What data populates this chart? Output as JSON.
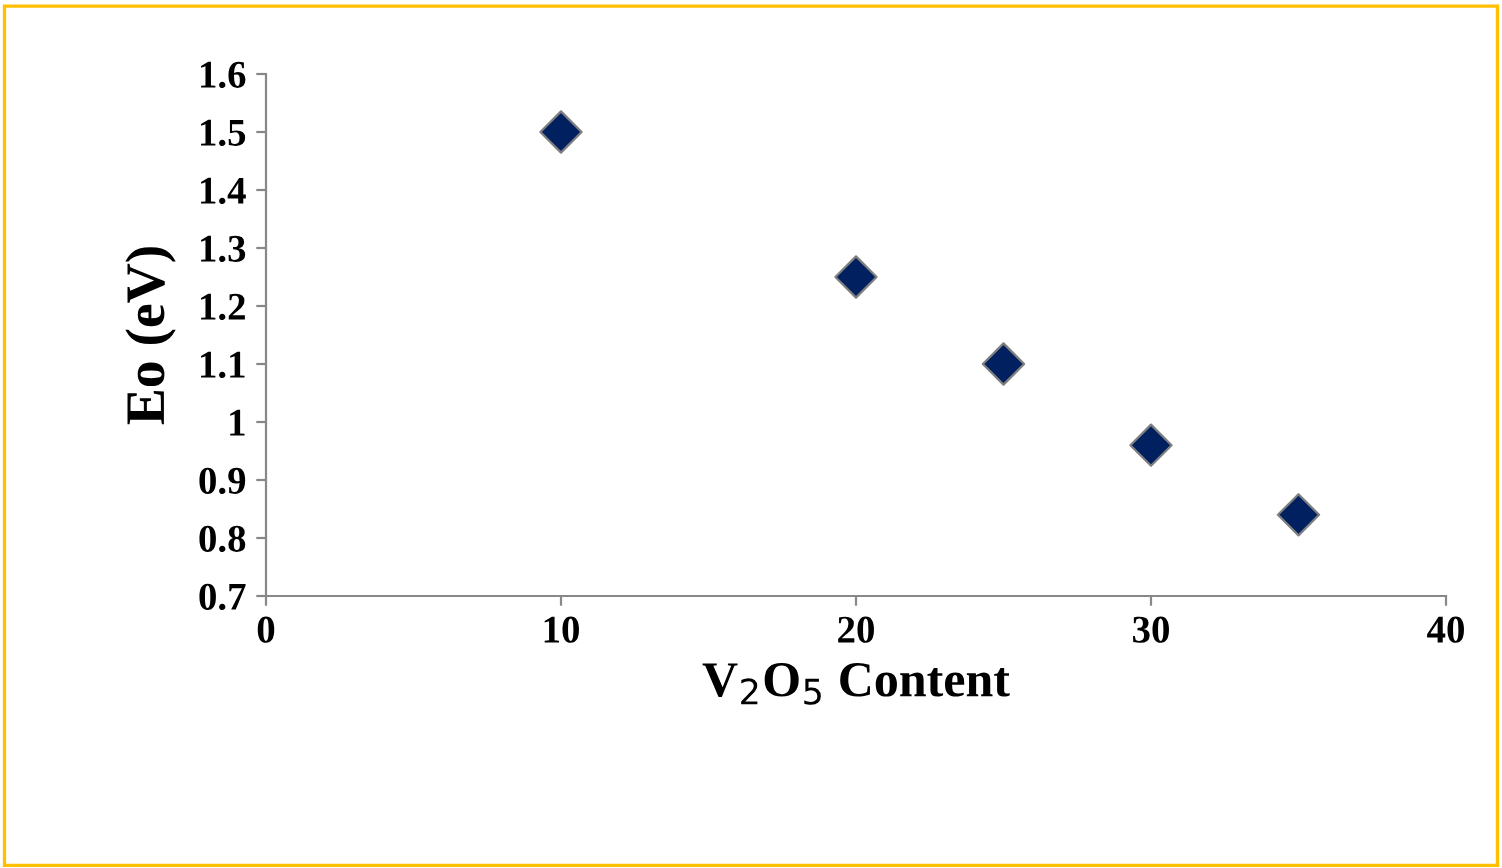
{
  "chart_data": {
    "type": "scatter",
    "xlabel": "V$_{2}$O$_{5}$ Content",
    "ylabel": "Eo (eV)",
    "x": [
      10,
      20,
      25,
      30,
      35
    ],
    "series": [
      {
        "color": "#002060",
        "values": [
          1.5,
          1.25,
          1.1,
          0.96,
          0.84
        ]
      }
    ],
    "marker": "diamond",
    "grid": false,
    "legend": false,
    "xlim": [
      0,
      40
    ],
    "xticks": [
      0,
      10,
      20,
      30,
      40
    ],
    "ylim": [
      0.7,
      1.6
    ],
    "yticks": [
      0.7,
      0.8,
      0.9,
      {
        "value": 1,
        "label": "1"
      },
      1.1,
      1.2,
      1.3,
      1.4,
      1.5,
      1.6
    ]
  }
}
